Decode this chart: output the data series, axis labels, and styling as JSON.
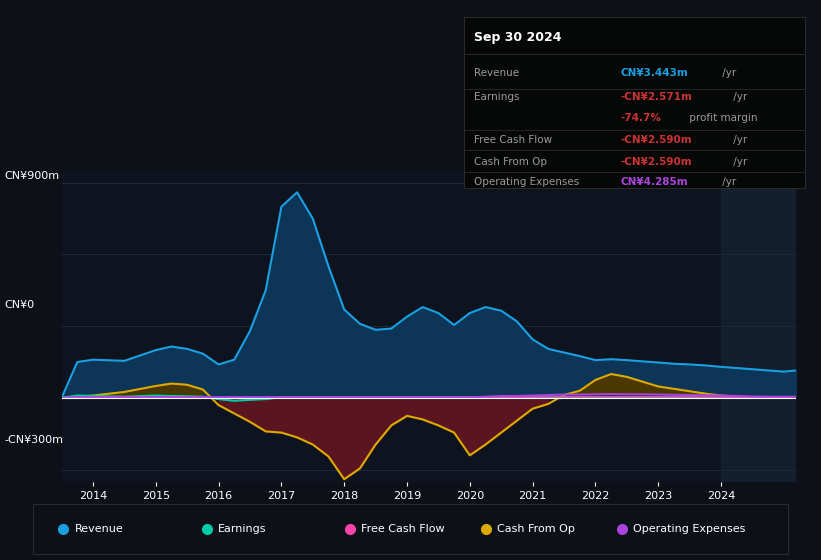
{
  "bg_color": "#0d1117",
  "plot_bg_color": "#0d1420",
  "grid_color": "#1e2a3a",
  "box_bg_color": "#060808",
  "box_border_color": "#2a2a2a",
  "title_date": "Sep 30 2024",
  "table_rows": [
    {
      "label": "Revenue",
      "value": "CN¥3.443m",
      "suffix": " /yr",
      "value_color": "#1a9fe0"
    },
    {
      "label": "Earnings",
      "value": "-CN¥2.571m",
      "suffix": " /yr",
      "value_color": "#cc3333"
    },
    {
      "label": "",
      "value": "-74.7%",
      "suffix": " profit margin",
      "value_color": "#cc3333"
    },
    {
      "label": "Free Cash Flow",
      "value": "-CN¥2.590m",
      "suffix": " /yr",
      "value_color": "#cc3333"
    },
    {
      "label": "Cash From Op",
      "value": "-CN¥2.590m",
      "suffix": " /yr",
      "value_color": "#cc3333"
    },
    {
      "label": "Operating Expenses",
      "value": "CN¥4.285m",
      "suffix": " /yr",
      "value_color": "#aa44dd"
    }
  ],
  "xlim": [
    2013.5,
    2025.2
  ],
  "ylim": [
    -350,
    950
  ],
  "y_label_900": "CN¥900m",
  "y_label_0": "CN¥0",
  "y_label_n300": "-CN¥300m",
  "xtick_years": [
    2014,
    2015,
    2016,
    2017,
    2018,
    2019,
    2020,
    2021,
    2022,
    2023,
    2024
  ],
  "years": [
    2013.5,
    2013.75,
    2014.0,
    2014.5,
    2015.0,
    2015.25,
    2015.5,
    2015.75,
    2016.0,
    2016.25,
    2016.5,
    2016.75,
    2017.0,
    2017.25,
    2017.5,
    2017.75,
    2018.0,
    2018.25,
    2018.5,
    2018.75,
    2019.0,
    2019.25,
    2019.5,
    2019.75,
    2020.0,
    2020.25,
    2020.5,
    2020.75,
    2021.0,
    2021.25,
    2021.5,
    2021.75,
    2022.0,
    2022.25,
    2022.5,
    2022.75,
    2023.0,
    2023.25,
    2023.5,
    2023.75,
    2024.0,
    2024.25,
    2024.5,
    2024.75,
    2025.0,
    2025.2
  ],
  "revenue": [
    0,
    150,
    160,
    155,
    200,
    215,
    205,
    185,
    140,
    160,
    280,
    450,
    800,
    860,
    750,
    550,
    370,
    310,
    285,
    290,
    340,
    380,
    355,
    305,
    355,
    380,
    365,
    320,
    245,
    205,
    190,
    175,
    158,
    162,
    158,
    153,
    148,
    143,
    140,
    136,
    130,
    125,
    120,
    115,
    110,
    115
  ],
  "earnings": [
    0,
    10,
    8,
    5,
    10,
    8,
    7,
    5,
    -5,
    -12,
    -8,
    -5,
    3,
    3,
    3,
    3,
    3,
    3,
    3,
    3,
    3,
    3,
    3,
    3,
    3,
    3,
    3,
    3,
    3,
    3,
    3,
    3,
    3,
    3,
    3,
    3,
    3,
    3,
    3,
    3,
    3,
    3,
    3,
    3,
    3,
    3
  ],
  "free_cash_flow": [
    0,
    3,
    3,
    3,
    3,
    3,
    3,
    3,
    3,
    3,
    3,
    3,
    3,
    3,
    3,
    3,
    3,
    3,
    3,
    3,
    3,
    3,
    3,
    3,
    3,
    3,
    3,
    3,
    3,
    3,
    3,
    3,
    3,
    3,
    3,
    3,
    3,
    3,
    3,
    3,
    3,
    3,
    3,
    3,
    3,
    3
  ],
  "cash_from_op": [
    0,
    5,
    10,
    25,
    50,
    60,
    55,
    35,
    -30,
    -65,
    -100,
    -140,
    -145,
    -165,
    -195,
    -245,
    -340,
    -295,
    -195,
    -115,
    -75,
    -90,
    -115,
    -145,
    -240,
    -195,
    -145,
    -95,
    -45,
    -25,
    12,
    30,
    75,
    100,
    88,
    68,
    48,
    38,
    28,
    18,
    10,
    5,
    3,
    3,
    3,
    3
  ],
  "op_expenses": [
    0,
    3,
    3,
    3,
    3,
    3,
    3,
    3,
    3,
    3,
    3,
    3,
    3,
    3,
    3,
    3,
    3,
    3,
    3,
    3,
    3,
    3,
    3,
    3,
    3,
    5,
    8,
    8,
    10,
    12,
    14,
    14,
    15,
    16,
    15,
    15,
    14,
    13,
    12,
    11,
    10,
    8,
    6,
    5,
    5,
    5
  ],
  "revenue_line_color": "#1a9fe0",
  "revenue_fill_color": "#0d3558",
  "earnings_line_color": "#00ccaa",
  "fcf_line_color": "#ff44aa",
  "cash_op_line_color": "#ddaa00",
  "cash_op_fill_neg_color": "#5a1520",
  "cash_op_fill_pos_color": "#4a3800",
  "op_exp_line_color": "#aa44dd",
  "op_exp_fill_color": "#331155",
  "zero_line_color": "#ffffff",
  "shade_start": 2024.0,
  "shade_color": "#131e2e",
  "legend_items": [
    {
      "label": "Revenue",
      "color": "#1a9fe0"
    },
    {
      "label": "Earnings",
      "color": "#00ccaa"
    },
    {
      "label": "Free Cash Flow",
      "color": "#ff44aa"
    },
    {
      "label": "Cash From Op",
      "color": "#ddaa00"
    },
    {
      "label": "Operating Expenses",
      "color": "#aa44dd"
    }
  ]
}
